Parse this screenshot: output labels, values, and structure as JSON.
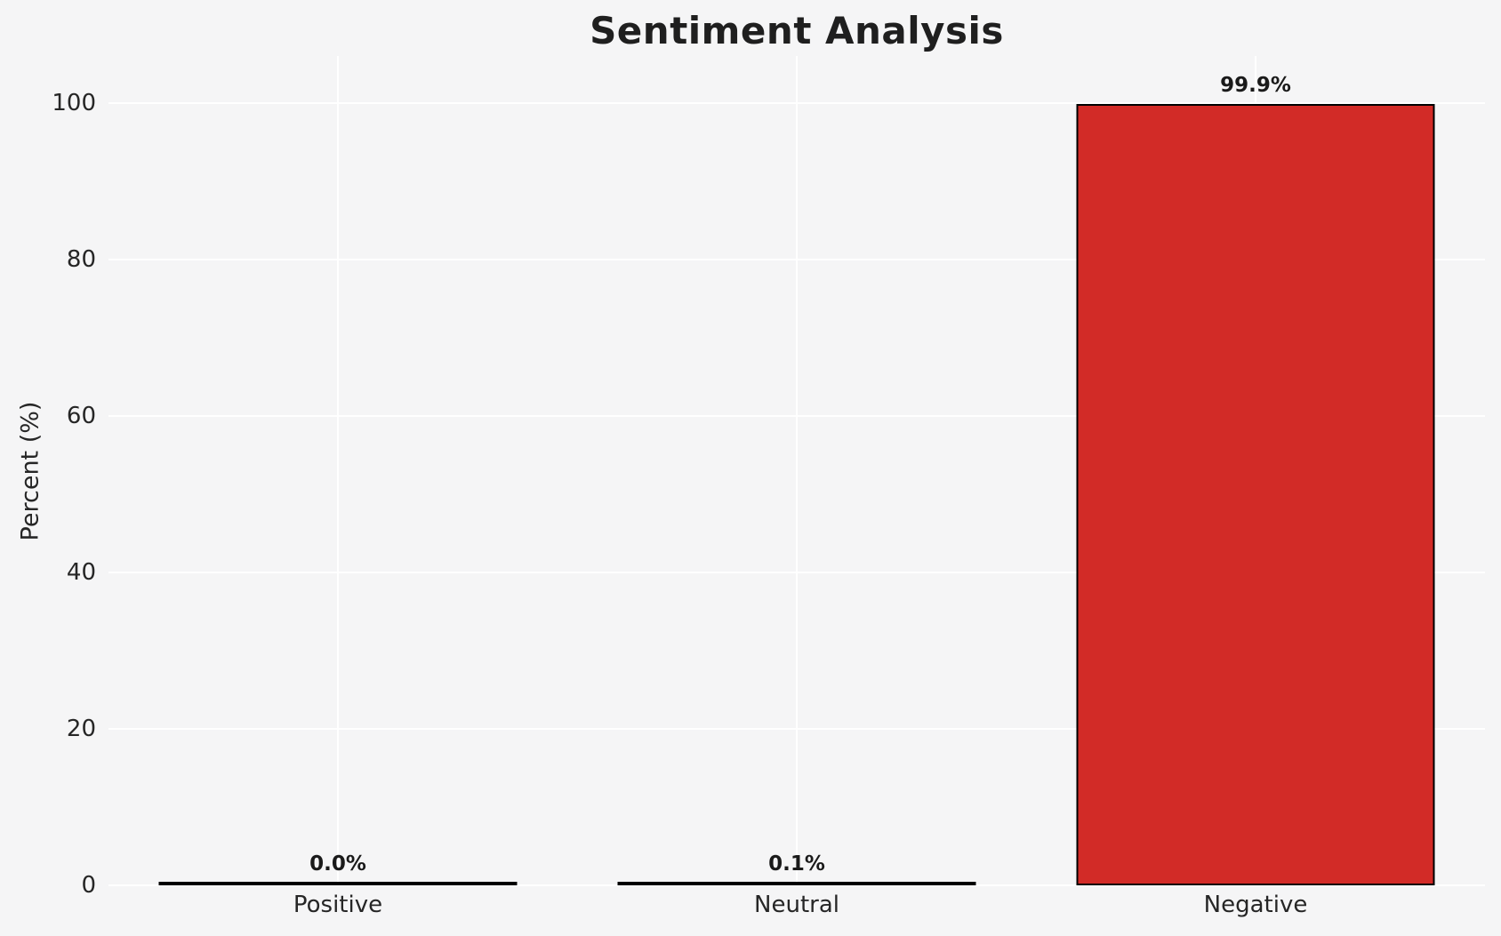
{
  "figure": {
    "background": "#f5f5f6",
    "text_color": "#262626",
    "title_color": "#1f1f1f"
  },
  "chart_data": {
    "type": "bar",
    "title": "Sentiment Analysis",
    "categories": [
      "Positive",
      "Neutral",
      "Negative"
    ],
    "values": [
      0.0,
      0.1,
      99.9
    ],
    "bar_labels": [
      "0.0%",
      "0.1%",
      "99.9%"
    ],
    "xlabel": "",
    "ylabel": "Percent (%)",
    "ylim": [
      0,
      106
    ],
    "yticks": [
      0,
      20,
      40,
      60,
      80,
      100
    ],
    "grid": true,
    "legend": false,
    "bar_colors": [
      null,
      null,
      "#d22b27"
    ],
    "bar_edge_color": "#000000",
    "gridline_color": "#ffffff"
  }
}
